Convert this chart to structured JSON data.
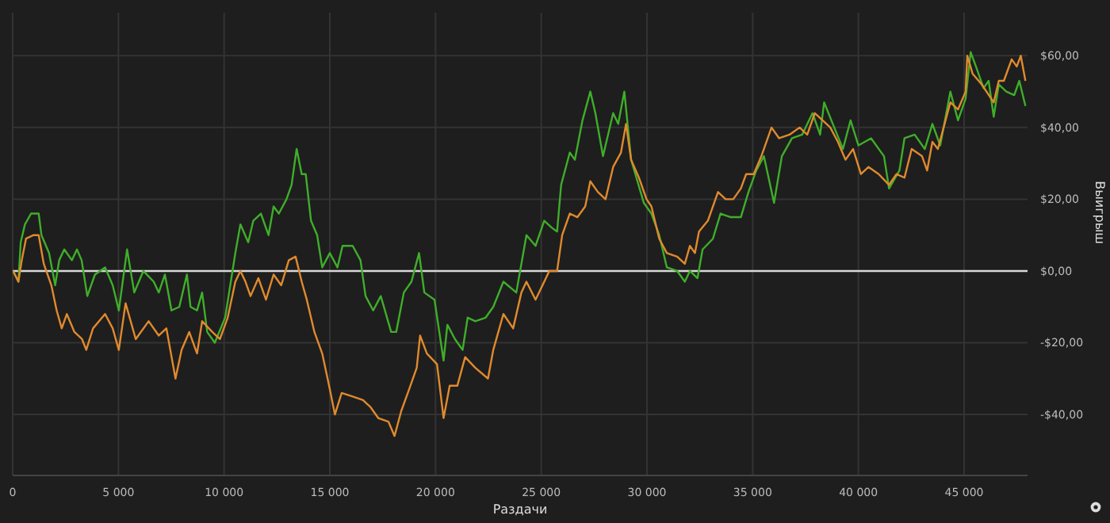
{
  "chart_data": {
    "type": "line",
    "xlabel": "Раздачи",
    "ylabel": "Выигрыш",
    "xlim": [
      0,
      48000
    ],
    "ylim": [
      -57,
      72
    ],
    "xticks": [
      0,
      {
        "value": 5000,
        "label": "5 000"
      },
      {
        "value": 10000,
        "label": "10 000"
      },
      {
        "value": 15000,
        "label": "15 000"
      },
      {
        "value": 20000,
        "label": "20 000"
      },
      {
        "value": 25000,
        "label": "25 000"
      },
      {
        "value": 30000,
        "label": "30 000"
      },
      {
        "value": 35000,
        "label": "35 000"
      },
      {
        "value": 40000,
        "label": "40 000"
      },
      {
        "value": 45000,
        "label": "45 000"
      }
    ],
    "yticks": [
      {
        "value": -40,
        "label": "-$40,00"
      },
      {
        "value": -20,
        "label": "-$20,00"
      },
      {
        "value": 0,
        "label": "$0,00"
      },
      {
        "value": 20,
        "label": "$20,00"
      },
      {
        "value": 40,
        "label": "$40,00"
      },
      {
        "value": 60,
        "label": "$60,00"
      }
    ],
    "grid": true,
    "marker": "none",
    "line_style": "solid",
    "ref_lines": [
      {
        "axis": "y",
        "value": 0,
        "color": "#d8d8d8"
      }
    ],
    "series": [
      {
        "color": "#3fae2a",
        "x": [
          20,
          270,
          380,
          580,
          870,
          1230,
          1360,
          1720,
          2010,
          2200,
          2440,
          2800,
          3040,
          3260,
          3530,
          3890,
          4370,
          4730,
          5020,
          5410,
          5750,
          6180,
          6670,
          6910,
          7200,
          7510,
          7880,
          8240,
          8410,
          8720,
          8960,
          9200,
          9560,
          10050,
          10530,
          10770,
          11140,
          11380,
          11740,
          12100,
          12340,
          12590,
          12950,
          13190,
          13430,
          13670,
          13860,
          14110,
          14400,
          14640,
          15000,
          15360,
          15600,
          16080,
          16450,
          16690,
          17050,
          17410,
          17900,
          18140,
          18500,
          18860,
          19220,
          19470,
          19950,
          20380,
          20560,
          20920,
          21280,
          21520,
          21880,
          22370,
          22730,
          23210,
          23820,
          24300,
          24730,
          25140,
          25510,
          25750,
          25940,
          26350,
          26590,
          26950,
          27320,
          27560,
          27920,
          28400,
          28640,
          28930,
          29250,
          29850,
          30210,
          30580,
          30940,
          31430,
          31790,
          32030,
          32390,
          32630,
          33120,
          33480,
          33960,
          34440,
          34800,
          35170,
          35530,
          36010,
          36380,
          36860,
          37340,
          37830,
          38190,
          38380,
          38790,
          39270,
          39630,
          40000,
          40600,
          41210,
          41450,
          41940,
          42180,
          42660,
          43140,
          43500,
          43870,
          44350,
          44710,
          45070,
          45310,
          45560,
          45920,
          46160,
          46400,
          46640,
          47000,
          47370,
          47610,
          47900
        ],
        "values": [
          0,
          -3,
          8,
          13,
          16,
          16,
          10,
          5,
          -4,
          3,
          6,
          3,
          6,
          3,
          -7,
          -1,
          1,
          -4,
          -11,
          6,
          -6,
          0,
          -3,
          -6,
          -1,
          -11,
          -10,
          -1,
          -10,
          -11,
          -6,
          -17,
          -20,
          -13,
          5,
          13,
          8,
          14,
          16,
          10,
          18,
          16,
          20,
          24,
          34,
          27,
          27,
          14,
          10,
          1,
          5,
          1,
          7,
          7,
          3,
          -7,
          -11,
          -7,
          -17,
          -17,
          -6,
          -3,
          5,
          -6,
          -8,
          -25,
          -15,
          -19,
          -22,
          -13,
          -14,
          -13,
          -10,
          -3,
          -6,
          10,
          7,
          14,
          12,
          11,
          24,
          33,
          31,
          42,
          50,
          44,
          32,
          44,
          41,
          50,
          31,
          19,
          16,
          10,
          1,
          0,
          -3,
          0,
          -2,
          6,
          9,
          16,
          15,
          15,
          22,
          28,
          32,
          19,
          32,
          37,
          38,
          44,
          38,
          47,
          41,
          34,
          42,
          35,
          37,
          32,
          23,
          28,
          37,
          38,
          34,
          41,
          35,
          50,
          42,
          48,
          61,
          57,
          51,
          53,
          43,
          52,
          50,
          49,
          53,
          46
        ]
      },
      {
        "color": "#e08a2e",
        "x": [
          20,
          270,
          430,
          630,
          990,
          1230,
          1470,
          1830,
          2080,
          2320,
          2560,
          2920,
          3280,
          3480,
          3800,
          4370,
          4730,
          5020,
          5340,
          5820,
          6430,
          6910,
          7270,
          7700,
          7990,
          8350,
          8720,
          8960,
          9440,
          9800,
          10170,
          10530,
          10770,
          11010,
          11250,
          11620,
          11980,
          12340,
          12700,
          13060,
          13380,
          13670,
          13910,
          14270,
          14640,
          15000,
          15240,
          15560,
          16080,
          16570,
          16930,
          17290,
          17770,
          18060,
          18380,
          18750,
          19110,
          19270,
          19590,
          20070,
          20380,
          20670,
          21030,
          21400,
          21880,
          22480,
          22730,
          23210,
          23670,
          24060,
          24300,
          24730,
          25140,
          25380,
          25750,
          25990,
          26350,
          26710,
          27080,
          27320,
          27680,
          28040,
          28400,
          28770,
          29010,
          29250,
          29620,
          29980,
          30210,
          30580,
          30940,
          31430,
          31790,
          32030,
          32270,
          32460,
          32880,
          33360,
          33720,
          34080,
          34440,
          34690,
          35050,
          35410,
          35890,
          36250,
          36740,
          37220,
          37580,
          37940,
          38310,
          38670,
          39030,
          39390,
          39750,
          40120,
          40480,
          40960,
          41450,
          41800,
          42180,
          42520,
          43010,
          43250,
          43500,
          43760,
          44350,
          44710,
          45070,
          45150,
          45400,
          45830,
          46400,
          46640,
          46880,
          47250,
          47490,
          47680,
          47900
        ],
        "values": [
          0,
          -3,
          3,
          9,
          10,
          10,
          2,
          -4,
          -11,
          -16,
          -12,
          -17,
          -19,
          -22,
          -16,
          -12,
          -16,
          -22,
          -9,
          -19,
          -14,
          -18,
          -16,
          -30,
          -22,
          -17,
          -23,
          -14,
          -17,
          -19,
          -13,
          -3,
          0,
          -3,
          -7,
          -2,
          -8,
          -1,
          -4,
          3,
          4,
          -3,
          -8,
          -17,
          -23,
          -33,
          -40,
          -34,
          -35,
          -36,
          -38,
          -41,
          -42,
          -46,
          -39,
          -33,
          -27,
          -18,
          -23,
          -26,
          -41,
          -32,
          -32,
          -24,
          -27,
          -30,
          -22,
          -12,
          -16,
          -6,
          -3,
          -8,
          -3,
          0,
          0,
          10,
          16,
          15,
          18,
          25,
          22,
          20,
          29,
          33,
          41,
          31,
          26,
          20,
          18,
          9,
          5,
          4,
          2,
          7,
          5,
          11,
          14,
          22,
          20,
          20,
          23,
          27,
          27,
          32,
          40,
          37,
          38,
          40,
          38,
          44,
          42,
          40,
          36,
          31,
          34,
          27,
          29,
          27,
          24,
          27,
          26,
          34,
          32,
          28,
          36,
          34,
          47,
          45,
          50,
          60,
          55,
          52,
          47,
          53,
          53,
          59,
          57,
          60,
          53
        ]
      }
    ]
  }
}
